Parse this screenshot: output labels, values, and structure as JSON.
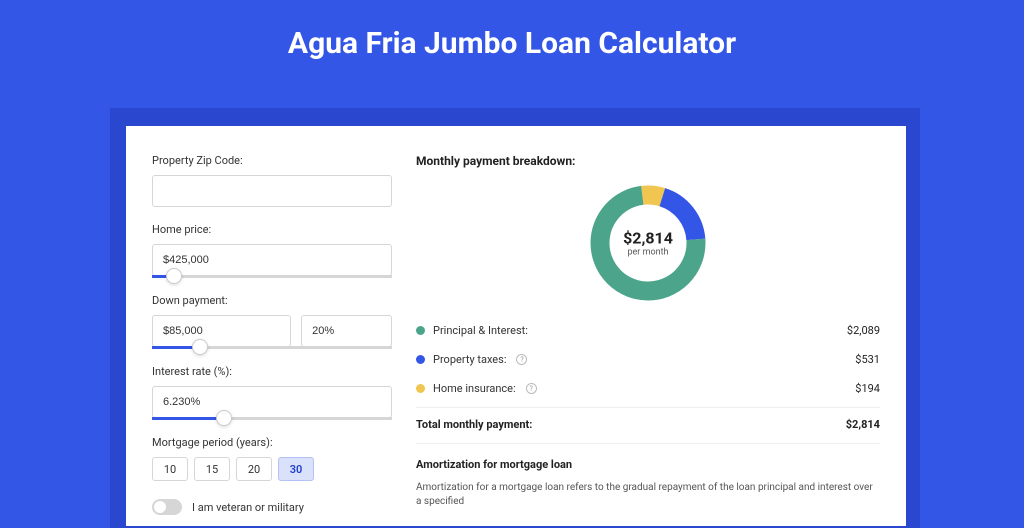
{
  "title": "Agua Fria Jumbo Loan Calculator",
  "colors": {
    "page_bg": "#3356e6",
    "shadow_bg": "#2a47d0",
    "panel_bg": "#ffffff",
    "accent": "#3356e6",
    "principal_interest": "#4ca58a",
    "property_taxes": "#3356e6",
    "home_insurance": "#f0c550"
  },
  "form": {
    "zip": {
      "label": "Property Zip Code:",
      "value": ""
    },
    "home_price": {
      "label": "Home price:",
      "value": "$425,000",
      "slider_pct": 9
    },
    "down_payment": {
      "label": "Down payment:",
      "value": "$85,000",
      "percent": "20%",
      "slider_pct": 20
    },
    "interest_rate": {
      "label": "Interest rate (%):",
      "value": "6.230%",
      "slider_pct": 30
    },
    "mortgage_period": {
      "label": "Mortgage period (years):",
      "options": [
        "10",
        "15",
        "20",
        "30"
      ],
      "selected": "30"
    },
    "veteran": {
      "label": "I am veteran or military",
      "checked": false
    }
  },
  "breakdown": {
    "title": "Monthly payment breakdown:",
    "center_amount": "$2,814",
    "center_sub": "per month",
    "items": [
      {
        "label": "Principal & Interest:",
        "value": "$2,089",
        "color": "#4ca58a",
        "info": false,
        "fraction": 0.742
      },
      {
        "label": "Property taxes:",
        "value": "$531",
        "color": "#3356e6",
        "info": true,
        "fraction": 0.189
      },
      {
        "label": "Home insurance:",
        "value": "$194",
        "color": "#f0c550",
        "info": true,
        "fraction": 0.069
      }
    ],
    "total_label": "Total monthly payment:",
    "total_value": "$2,814"
  },
  "amortization": {
    "title": "Amortization for mortgage loan",
    "text": "Amortization for a mortgage loan refers to the gradual repayment of the loan principal and interest over a specified"
  },
  "donut": {
    "size": 118,
    "stroke": 19,
    "radius": 48,
    "circumference": 301.59
  }
}
